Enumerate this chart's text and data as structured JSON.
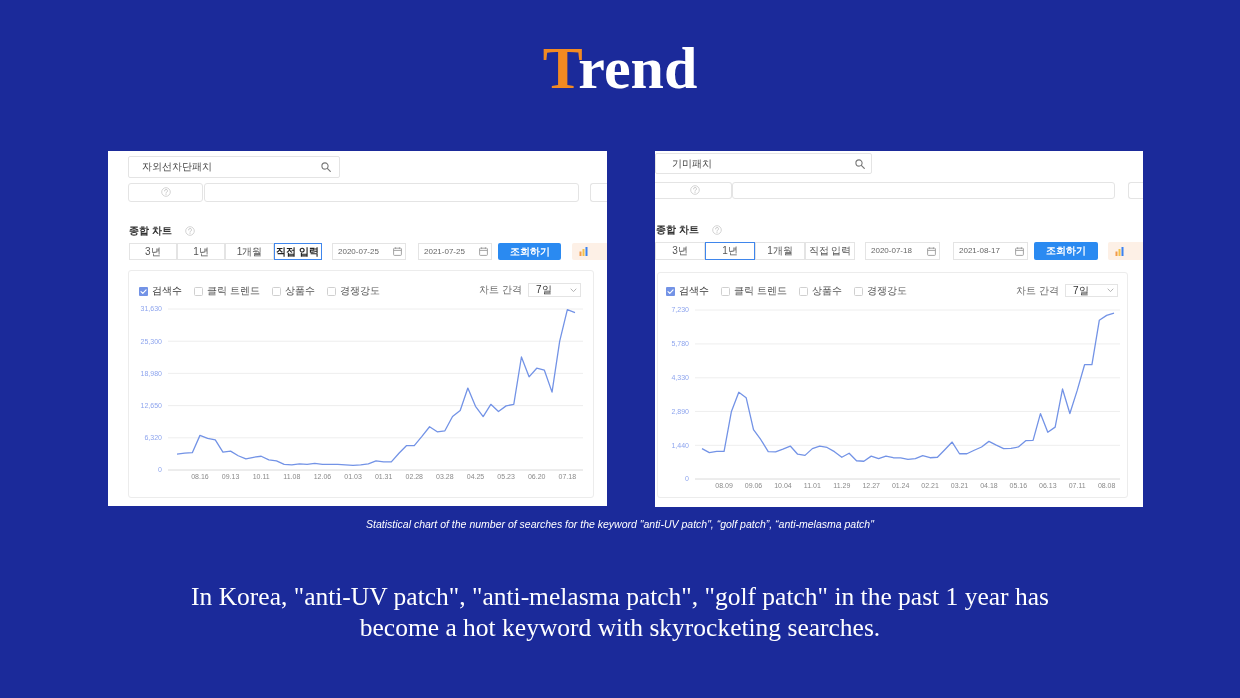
{
  "chart_data": [
    {
      "type": "other",
      "title": "Trend"
    },
    {
      "type": "line",
      "title": "종합 차트",
      "categories": [
        null,
        null,
        null,
        "08.16",
        null,
        null,
        null,
        "09.13",
        null,
        null,
        null,
        "10.11",
        null,
        null,
        null,
        "11.08",
        null,
        null,
        null,
        "12.06",
        null,
        null,
        null,
        "01.03",
        null,
        null,
        null,
        "01.31",
        null,
        null,
        null,
        "02.28",
        null,
        null,
        null,
        "03.28",
        null,
        null,
        null,
        "04.25",
        null,
        null,
        null,
        "05.23",
        null,
        null,
        null,
        "06.20",
        null,
        null,
        null,
        "07.18",
        null
      ],
      "series": [
        {
          "name": "검색수",
          "color": "#7393e6",
          "values": [
            3100,
            3300,
            3400,
            6800,
            6200,
            5900,
            3500,
            3700,
            2800,
            2200,
            2500,
            2700,
            2000,
            1800,
            1100,
            1000,
            1200,
            1100,
            1300,
            1100,
            1100,
            1100,
            1000,
            900,
            1000,
            1200,
            1800,
            1600,
            1600,
            3300,
            4800,
            4800,
            6600,
            8500,
            7500,
            7700,
            10500,
            11700,
            16100,
            12500,
            10500,
            12900,
            11500,
            12600,
            12900,
            22200,
            18300,
            20000,
            19600,
            15300,
            25300,
            31500,
            30900
          ]
        }
      ],
      "ylim": [
        0,
        31630
      ],
      "yticks": [
        0,
        {
          "value": 6320,
          "label": "6,320"
        },
        {
          "value": 12650,
          "label": "12,650"
        },
        {
          "value": 18980,
          "label": "18,980"
        },
        {
          "value": 25300,
          "label": "25,300"
        },
        {
          "value": 31630,
          "label": "31,630"
        }
      ],
      "grid": "y",
      "legend": "top left",
      "annotations": [
        "자외선차단패치",
        "3년",
        "1년",
        "1개월",
        "직접 입력",
        "2020-07-25",
        "2021-07-25",
        "조회하기",
        "클릭 트렌드",
        "상품수",
        "경쟁강도",
        "차트 간격",
        "7일"
      ]
    },
    {
      "type": "line",
      "title": "종합 차트",
      "categories": [
        null,
        null,
        null,
        "08.09",
        null,
        null,
        null,
        "09.06",
        null,
        null,
        null,
        "10.04",
        null,
        null,
        null,
        "11.01",
        null,
        null,
        null,
        "11.29",
        null,
        null,
        null,
        "12.27",
        null,
        null,
        null,
        "01.24",
        null,
        null,
        null,
        "02.21",
        null,
        null,
        null,
        "03.21",
        null,
        null,
        null,
        "04.18",
        null,
        null,
        null,
        "05.16",
        null,
        null,
        null,
        "06.13",
        null,
        null,
        null,
        "07.11",
        null,
        null,
        null,
        "08.08",
        null
      ],
      "series": [
        {
          "name": "검색수",
          "color": "#7393e6",
          "values": [
            1300,
            1130,
            1180,
            1180,
            2890,
            3710,
            3480,
            2110,
            1680,
            1170,
            1160,
            1280,
            1410,
            1060,
            1010,
            1300,
            1410,
            1350,
            1170,
            930,
            1100,
            780,
            760,
            980,
            870,
            980,
            910,
            900,
            840,
            870,
            1000,
            910,
            930,
            1250,
            1580,
            1080,
            1080,
            1230,
            1370,
            1610,
            1450,
            1300,
            1310,
            1370,
            1640,
            1650,
            2800,
            2000,
            2220,
            3850,
            2800,
            3790,
            4890,
            4890,
            6790,
            7000,
            7100
          ]
        }
      ],
      "ylim": [
        0,
        7230
      ],
      "yticks": [
        0,
        {
          "value": 1440,
          "label": "1,440"
        },
        {
          "value": 2890,
          "label": "2,890"
        },
        {
          "value": 4330,
          "label": "4,330"
        },
        {
          "value": 5780,
          "label": "5,780"
        },
        {
          "value": 7230,
          "label": "7,230"
        }
      ],
      "grid": "y",
      "legend": "top left",
      "annotations": [
        "기미패치",
        "3년",
        "1년",
        "1개월",
        "직접 입력",
        "2020-07-18",
        "2021-08-17",
        "조회하기",
        "클릭 트렌드",
        "상품수",
        "경쟁강도",
        "차트 간격",
        "7일"
      ]
    },
    {
      "type": "other",
      "annotations": [
        "Statistical chart of the number of searches for the keyword \"anti-UV patch\", “golf patch”, “anti-melasma patch\"",
        "In Korea, \"anti-UV patch\", \"anti-melasma patch\", \"golf patch\" in the past 1 year has become a hot keyword with skyrocketing searches."
      ]
    }
  ]
}
